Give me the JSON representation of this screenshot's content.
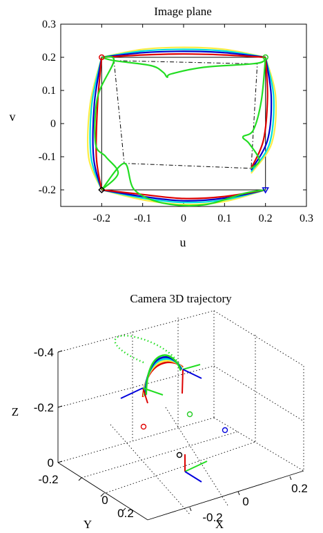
{
  "chart_data": [
    {
      "type": "line",
      "title": "Image plane",
      "xlabel": "u",
      "ylabel": "v",
      "xlim": [
        -0.3,
        0.3
      ],
      "ylim": [
        -0.25,
        0.3
      ],
      "x_ticks": [
        "-0.2",
        "-0.1",
        "0",
        "0.1",
        "0.2",
        "0.3"
      ],
      "y_ticks": [
        "0.3",
        "0.2",
        "0.1",
        "0",
        "-0.1",
        "-0.2"
      ],
      "grid": false,
      "square": {
        "x": [
          -0.2,
          0.2,
          0.2,
          -0.2,
          -0.2
        ],
        "y": [
          0.2,
          0.2,
          -0.2,
          -0.2,
          0.2
        ],
        "color": "#000000"
      },
      "dashdot_quad": {
        "x": [
          -0.17,
          0.18,
          0.165,
          -0.145,
          -0.17
        ],
        "y": [
          0.19,
          0.18,
          -0.135,
          -0.12,
          0.19
        ],
        "color": "#000000"
      },
      "corner_markers": [
        {
          "shape": "circle",
          "color": "#e00000",
          "x": -0.2,
          "y": 0.2
        },
        {
          "shape": "circle",
          "color": "#22cc22",
          "x": 0.2,
          "y": 0.2
        },
        {
          "shape": "triangle",
          "color": "#0000dd",
          "x": 0.2,
          "y": -0.2
        },
        {
          "shape": "diamond",
          "color": "#000000",
          "x": -0.2,
          "y": -0.2
        }
      ],
      "series": [
        {
          "color": "#ffee44",
          "paths": [
            {
              "x": [
                -0.2,
                -0.1,
                0.0,
                0.1,
                0.2
              ],
              "y": [
                0.2,
                0.224,
                0.23,
                0.224,
                0.2
              ]
            },
            {
              "x": [
                0.2,
                0.225,
                0.215,
                0.165
              ],
              "y": [
                0.2,
                0.08,
                -0.06,
                -0.15
              ]
            },
            {
              "x": [
                -0.2,
                -0.228,
                -0.232,
                -0.2
              ],
              "y": [
                0.2,
                0.06,
                -0.1,
                -0.2
              ]
            },
            {
              "x": [
                -0.2,
                -0.1,
                0.0,
                0.1,
                0.2
              ],
              "y": [
                -0.2,
                -0.23,
                -0.244,
                -0.235,
                -0.2
              ]
            }
          ]
        },
        {
          "color": "#00dddd",
          "paths": [
            {
              "x": [
                -0.2,
                -0.1,
                0.0,
                0.1,
                0.2
              ],
              "y": [
                0.2,
                0.219,
                0.224,
                0.219,
                0.2
              ]
            },
            {
              "x": [
                0.2,
                0.22,
                0.21,
                0.165
              ],
              "y": [
                0.2,
                0.08,
                -0.06,
                -0.145
              ]
            },
            {
              "x": [
                -0.2,
                -0.224,
                -0.226,
                -0.2
              ],
              "y": [
                0.2,
                0.06,
                -0.1,
                -0.2
              ]
            },
            {
              "x": [
                -0.2,
                -0.1,
                0.0,
                0.1,
                0.2
              ],
              "y": [
                -0.2,
                -0.225,
                -0.238,
                -0.23,
                -0.2
              ]
            }
          ]
        },
        {
          "color": "#0000cc",
          "paths": [
            {
              "x": [
                -0.2,
                -0.1,
                0.0,
                0.1,
                0.2
              ],
              "y": [
                0.2,
                0.214,
                0.218,
                0.214,
                0.2
              ]
            },
            {
              "x": [
                0.2,
                0.214,
                0.205,
                0.165
              ],
              "y": [
                0.2,
                0.08,
                -0.05,
                -0.14
              ]
            },
            {
              "x": [
                -0.2,
                -0.218,
                -0.22,
                -0.2
              ],
              "y": [
                0.2,
                0.06,
                -0.1,
                -0.2
              ]
            },
            {
              "x": [
                -0.2,
                -0.1,
                0.0,
                0.1,
                0.2
              ],
              "y": [
                -0.2,
                -0.22,
                -0.233,
                -0.225,
                -0.2
              ]
            }
          ]
        },
        {
          "color": "#dd0000",
          "paths": [
            {
              "x": [
                -0.2,
                -0.1,
                0.0,
                0.1,
                0.2
              ],
              "y": [
                0.2,
                0.207,
                0.21,
                0.207,
                0.2
              ]
            },
            {
              "x": [
                0.2,
                0.205,
                0.195,
                0.165
              ],
              "y": [
                0.2,
                0.08,
                -0.05,
                -0.135
              ]
            },
            {
              "x": [
                -0.2,
                -0.21,
                -0.213,
                -0.2
              ],
              "y": [
                0.2,
                0.06,
                -0.1,
                -0.2
              ]
            },
            {
              "x": [
                -0.2,
                -0.1,
                0.0,
                0.1,
                0.2
              ],
              "y": [
                -0.2,
                -0.214,
                -0.226,
                -0.22,
                -0.2
              ]
            }
          ]
        },
        {
          "color": "#22dd22",
          "paths": [
            {
              "x": [
                -0.2,
                -0.17,
                -0.08,
                -0.05,
                -0.04,
                -0.03,
                0.05,
                0.18,
                0.2
              ],
              "y": [
                0.2,
                0.19,
                0.175,
                0.155,
                0.14,
                0.15,
                0.17,
                0.182,
                0.2
              ]
            },
            {
              "x": [
                0.2,
                0.19,
                0.17,
                0.145,
                0.16,
                0.185,
                0.165
              ],
              "y": [
                0.2,
                0.07,
                -0.02,
                -0.04,
                -0.06,
                -0.11,
                -0.135
              ]
            },
            {
              "x": [
                -0.2,
                -0.17,
                -0.21,
                -0.215,
                -0.19,
                -0.16,
                -0.2
              ],
              "y": [
                0.2,
                0.19,
                0.08,
                -0.06,
                -0.1,
                -0.15,
                -0.2
              ]
            },
            {
              "x": [
                -0.2,
                -0.145,
                -0.12,
                -0.05,
                0.05,
                0.15,
                0.2
              ],
              "y": [
                -0.2,
                -0.12,
                -0.2,
                -0.24,
                -0.245,
                -0.21,
                -0.2
              ]
            }
          ]
        }
      ]
    },
    {
      "type": "line",
      "title": "Camera 3D trajectory",
      "xlabel": "X",
      "ylabel": "Y",
      "zlabel": "Z",
      "x_ticks": [
        "-0.2",
        "0",
        "0.2"
      ],
      "y_ticks": [
        "-0.2",
        "0",
        "0.2"
      ],
      "z_ticks": [
        "0",
        "-0.2",
        "-0.4"
      ],
      "grid": true,
      "dotted_path_color": "#22dd22",
      "ground_points": [
        {
          "color": "#e00000",
          "label": "red circle"
        },
        {
          "color": "#22cc22",
          "label": "green circle"
        },
        {
          "color": "#0000dd",
          "label": "blue circle"
        },
        {
          "color": "#000000",
          "label": "black circle"
        }
      ],
      "trajectory_colors": [
        "#dd0000",
        "#ffee44",
        "#00dddd",
        "#0000cc",
        "#22dd22"
      ],
      "frame_axis_colors": [
        "#dd0000",
        "#22dd22",
        "#0000dd"
      ]
    }
  ]
}
